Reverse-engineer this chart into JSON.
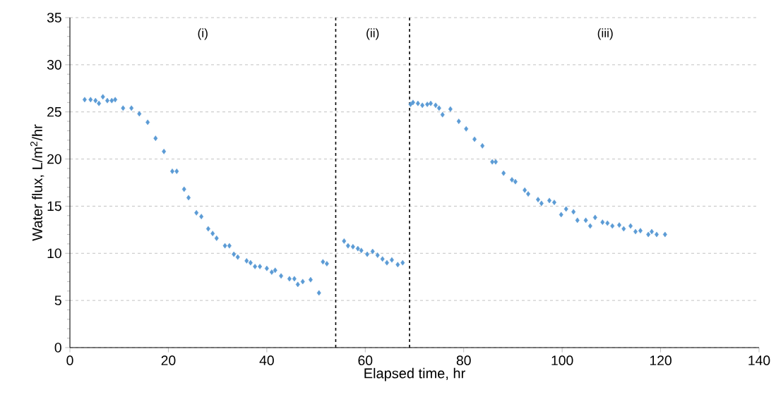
{
  "chart_data": {
    "type": "scatter",
    "xlabel": "Elapsed time, hr",
    "ylabel": "Water flux, L/m$^{2}$/hr",
    "x": [
      3.0,
      4.2,
      5.2,
      5.9,
      6.7,
      7.6,
      8.5,
      9.2,
      10.8,
      12.5,
      14.1,
      15.8,
      17.4,
      19.1,
      20.8,
      21.7,
      23.2,
      24.1,
      25.7,
      26.7,
      28.1,
      29.0,
      29.8,
      31.5,
      32.4,
      33.3,
      34.1,
      35.9,
      36.7,
      37.6,
      38.6,
      40.0,
      41.0,
      41.7,
      42.9,
      44.6,
      45.6,
      46.3,
      47.3,
      48.9,
      50.6,
      51.4,
      52.2,
      55.7,
      56.5,
      57.5,
      58.5,
      59.2,
      60.4,
      61.5,
      62.5,
      63.5,
      64.4,
      65.4,
      66.6,
      67.6,
      69.2,
      69.7,
      70.7,
      71.6,
      72.6,
      73.3,
      74.3,
      75.0,
      75.7,
      77.3,
      79.0,
      80.5,
      82.2,
      83.8,
      85.8,
      86.5,
      88.1,
      89.8,
      90.5,
      92.4,
      93.1,
      95.1,
      95.8,
      97.4,
      98.4,
      99.8,
      100.8,
      102.3,
      103.1,
      104.8,
      105.7,
      106.7,
      108.2,
      109.2,
      110.2,
      111.6,
      112.5,
      113.9,
      114.9,
      115.9,
      117.5,
      118.2,
      119.2,
      120.9
    ],
    "values": [
      26.3,
      26.3,
      26.2,
      25.9,
      26.6,
      26.2,
      26.2,
      26.3,
      25.4,
      25.4,
      24.8,
      23.9,
      22.2,
      20.8,
      18.7,
      18.7,
      16.8,
      15.9,
      14.3,
      13.9,
      12.6,
      12.1,
      11.6,
      10.8,
      10.8,
      9.9,
      9.6,
      9.2,
      9.0,
      8.6,
      8.6,
      8.4,
      8.0,
      8.2,
      7.6,
      7.3,
      7.3,
      6.7,
      7.0,
      7.2,
      5.8,
      9.1,
      8.9,
      11.3,
      10.8,
      10.7,
      10.5,
      10.3,
      9.9,
      10.2,
      9.8,
      9.4,
      9.0,
      9.3,
      8.8,
      9.0,
      25.8,
      26.0,
      25.9,
      25.7,
      25.8,
      25.9,
      25.7,
      25.4,
      24.7,
      25.3,
      24.0,
      23.2,
      22.1,
      21.4,
      19.7,
      19.7,
      18.5,
      17.8,
      17.6,
      16.7,
      16.3,
      15.7,
      15.3,
      15.6,
      15.4,
      14.1,
      14.7,
      14.4,
      13.5,
      13.5,
      12.9,
      13.8,
      13.3,
      13.2,
      12.9,
      13.0,
      12.6,
      12.9,
      12.3,
      12.4,
      12.0,
      12.3,
      12.0,
      12.0
    ],
    "color": "#5b9bd5",
    "marker": "diamond",
    "grid": "y",
    "xlim": [
      0,
      140
    ],
    "xticks": [
      0,
      20,
      40,
      60,
      80,
      100,
      120,
      140
    ],
    "ylim": [
      0,
      35
    ],
    "yticks": [
      0,
      5,
      10,
      15,
      20,
      25,
      30,
      35
    ],
    "ref_lines": [
      {
        "axis": "x",
        "value": 54,
        "color": "#000000",
        "line_style": "dashed"
      },
      {
        "axis": "x",
        "value": 69,
        "color": "#000000",
        "line_style": "dashed"
      }
    ],
    "annotations": [
      "(i)",
      "(ii)",
      "(iii)"
    ]
  }
}
